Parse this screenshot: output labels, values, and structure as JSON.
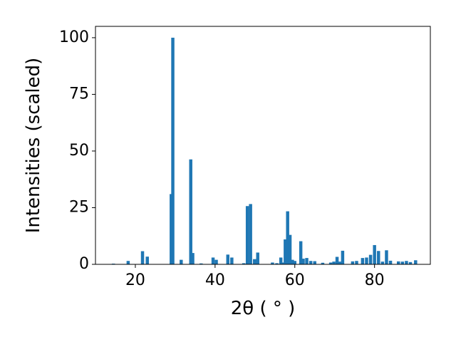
{
  "chart_data": {
    "type": "bar",
    "x_label": "2θ ( ° )",
    "y_label": "Intensities (scaled)",
    "color": "#1f77b4",
    "bar_width": 0.8,
    "x": [
      14.5,
      18.2,
      21.8,
      23.0,
      29.0,
      29.4,
      31.5,
      33.9,
      34.4,
      36.5,
      39.5,
      40.3,
      43.2,
      44.2,
      47.2,
      48.1,
      48.9,
      49.9,
      50.7,
      54.4,
      55.5,
      56.5,
      57.2,
      57.6,
      58.2,
      58.8,
      59.4,
      60.0,
      61.5,
      62.1,
      63.0,
      64.0,
      65.0,
      67.0,
      69.0,
      69.8,
      70.6,
      71.3,
      72.0,
      74.5,
      75.5,
      77.0,
      78.0,
      79.0,
      80.0,
      81.0,
      82.0,
      83.0,
      84.0,
      86.0,
      87.0,
      88.0,
      89.0,
      90.3
    ],
    "values": [
      0.3,
      1.5,
      5.8,
      3.4,
      31,
      100,
      2,
      46.3,
      5,
      0.4,
      3,
      2,
      4.3,
      3,
      0.5,
      25.7,
      26.6,
      2.3,
      5.2,
      0.8,
      0.5,
      3,
      0.8,
      11,
      23.4,
      13,
      2,
      1.5,
      10.2,
      2.5,
      2.8,
      1.5,
      1.4,
      0.7,
      0.8,
      1.2,
      3.3,
      1.2,
      6,
      1.3,
      1.5,
      2.8,
      3,
      4.2,
      8.5,
      5.9,
      1.2,
      6.2,
      1.6,
      1.3,
      1.2,
      1.5,
      1,
      1.8
    ],
    "xlim": [
      10,
      94
    ],
    "ylim": [
      0,
      105
    ],
    "xticks": [
      20,
      40,
      60,
      80
    ],
    "yticks": [
      0,
      25,
      50,
      75,
      100
    ]
  }
}
